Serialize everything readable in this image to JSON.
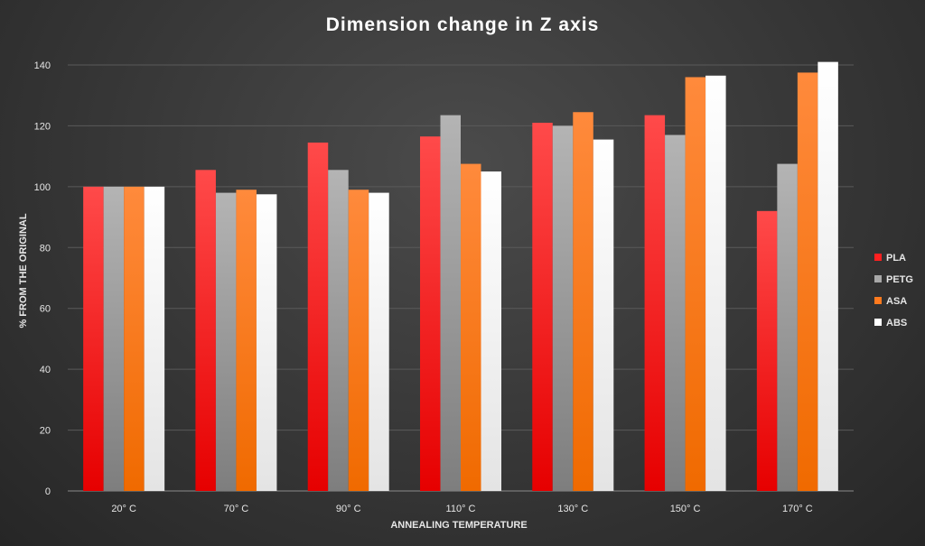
{
  "chart_data": {
    "type": "bar",
    "title": "Dimension  change  in  Z  axis",
    "xlabel": "ANNEALING TEMPERATURE",
    "ylabel": "% FROM THE ORIGINAL",
    "categories": [
      "20° C",
      "70° C",
      "90° C",
      "110° C",
      "130° C",
      "150° C",
      "170° C"
    ],
    "ylim": [
      0,
      140
    ],
    "yticks": [
      0,
      20,
      40,
      60,
      80,
      100,
      120,
      140
    ],
    "grid": true,
    "legend_position": "right",
    "series": [
      {
        "name": "PLA",
        "color": "#ff2020",
        "values": [
          100,
          105.5,
          114.5,
          116.5,
          121,
          123.5,
          92
        ]
      },
      {
        "name": "PETG",
        "color": "#a8a8a8",
        "values": [
          100,
          98,
          105.5,
          123.5,
          120,
          117,
          107.5
        ]
      },
      {
        "name": "ASA",
        "color": "#ff7a1e",
        "values": [
          100,
          99,
          99,
          107.5,
          124.5,
          136,
          137.5
        ]
      },
      {
        "name": "ABS",
        "color": "#ffffff",
        "values": [
          100,
          97.5,
          98,
          105,
          115.5,
          136.5,
          141
        ]
      }
    ]
  }
}
